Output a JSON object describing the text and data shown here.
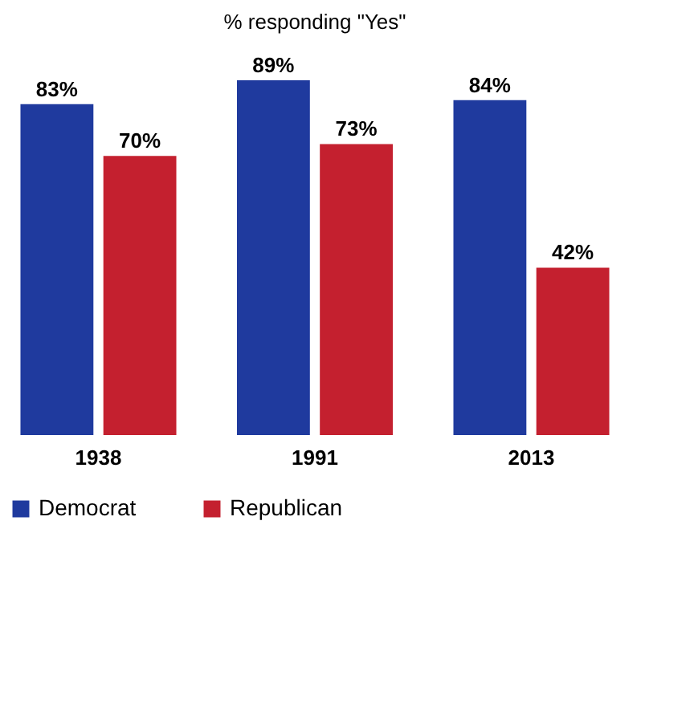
{
  "chart_data": {
    "type": "bar",
    "title": "% responding \"Yes\"",
    "categories": [
      "1938",
      "1991",
      "2013"
    ],
    "series": [
      {
        "name": "Democrat",
        "color": "#1f3a9e",
        "values": [
          83,
          89,
          84
        ],
        "value_labels": [
          "83%",
          "89%",
          "84%"
        ]
      },
      {
        "name": "Republican",
        "color": "#c4202f",
        "values": [
          70,
          73,
          42
        ],
        "value_labels": [
          "70%",
          "73%",
          "42%"
        ]
      }
    ],
    "legend": "bottom"
  }
}
